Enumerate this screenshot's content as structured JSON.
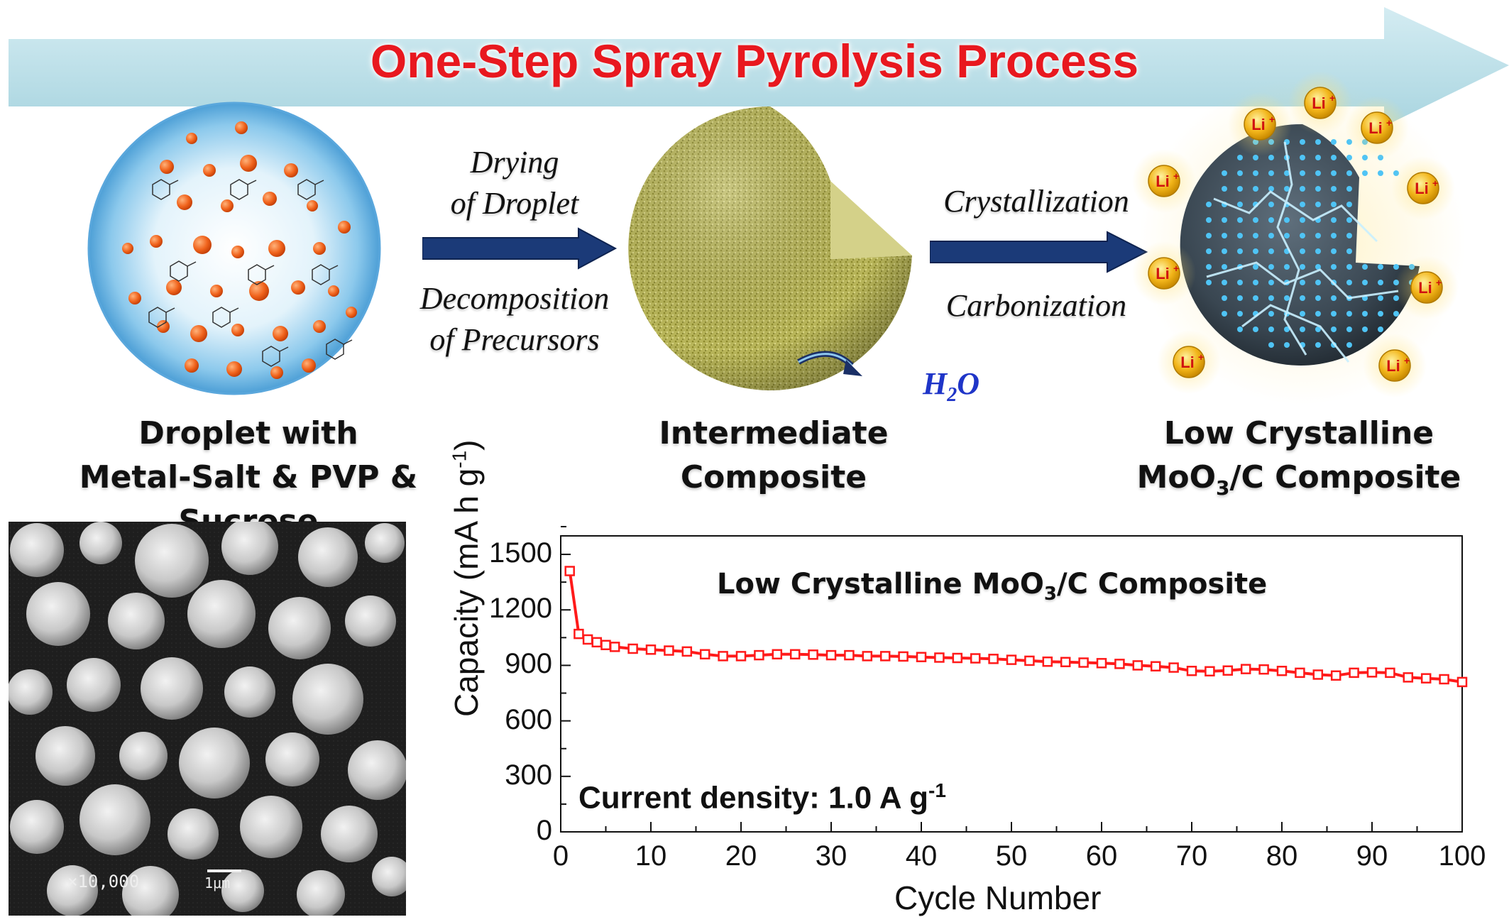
{
  "banner": {
    "title": "One-Step Spray Pyrolysis Process"
  },
  "stages": {
    "droplet": {
      "line1": "Droplet with",
      "line2": "Metal-Salt & PVP & Sucrose"
    },
    "intermediate": {
      "line1": "Intermediate",
      "line2": "Composite"
    },
    "final": {
      "line1": "Low Crystalline",
      "line2_pre": "MoO",
      "line2_sub": "3",
      "line2_post": "/C Composite"
    }
  },
  "steps": {
    "step1_top": [
      "Drying",
      "of Droplet"
    ],
    "step1_bottom": [
      "Decomposition",
      "of Precursors"
    ],
    "step2_top": "Crystallization",
    "step2_bottom": "Carbonization"
  },
  "h2o": {
    "pre": "H",
    "sub": "2",
    "post": "O"
  },
  "li_label": {
    "base": "Li",
    "sup": "+"
  },
  "sem": {
    "magnification": "×10,000",
    "scale": "1μm"
  },
  "colors": {
    "banner": "#bfe1ea",
    "title": "#e8181f",
    "arrow": "#1b3a78",
    "series": "#ff1a1a",
    "h2o": "#1f35c8",
    "li_ion": "#f2b51a"
  },
  "chart_data": {
    "type": "line",
    "title_pre": "Low Crystalline MoO",
    "title_sub": "3",
    "title_post": "/C Composite",
    "note_pre": "Current density: 1.0 A g",
    "note_sup": "-1",
    "xlabel": "Cycle Number",
    "ylabel_pre": "Capacity (mA h g",
    "ylabel_sup": "-1",
    "ylabel_post": ")",
    "xlim": [
      0,
      100
    ],
    "ylim": [
      0,
      1600
    ],
    "xticks": [
      "0",
      "10",
      "20",
      "30",
      "40",
      "50",
      "60",
      "70",
      "80",
      "90",
      "100"
    ],
    "yticks": [
      "0",
      "300",
      "600",
      "900",
      "1200",
      "1500"
    ],
    "series": [
      {
        "x": [
          1,
          2,
          3,
          4,
          5,
          6,
          8,
          10,
          12,
          14,
          16,
          18,
          20,
          22,
          24,
          26,
          28,
          30,
          32,
          34,
          36,
          38,
          40,
          42,
          44,
          46,
          48,
          50,
          52,
          54,
          56,
          58,
          60,
          62,
          64,
          66,
          68,
          70,
          72,
          74,
          76,
          78,
          80,
          82,
          84,
          86,
          88,
          90,
          92,
          94,
          96,
          98,
          100
        ],
        "y": [
          1410,
          1070,
          1040,
          1025,
          1010,
          1000,
          990,
          985,
          980,
          975,
          960,
          950,
          950,
          955,
          960,
          960,
          958,
          955,
          955,
          950,
          950,
          948,
          945,
          942,
          940,
          938,
          935,
          930,
          925,
          920,
          918,
          915,
          912,
          908,
          900,
          895,
          888,
          870,
          868,
          872,
          880,
          878,
          870,
          860,
          850,
          845,
          860,
          862,
          860,
          835,
          830,
          825,
          810
        ]
      }
    ]
  }
}
